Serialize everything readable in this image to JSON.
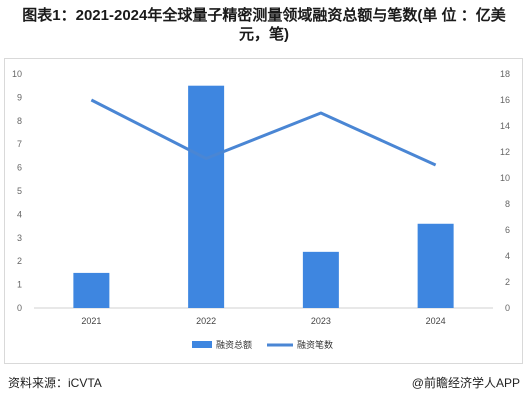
{
  "title": "图表1：2021-2024年全球量子精密测量领域融资总额与笔数(单 位 ：亿美元，笔)",
  "source_label": "资料来源：iCVTA",
  "brand_label": "@前瞻经济学人APP",
  "chart_data": {
    "type": "bar",
    "categories": [
      "2021",
      "2022",
      "2023",
      "2024"
    ],
    "series": [
      {
        "name": "融资总额",
        "type": "bar",
        "axis": "left",
        "values": [
          1.5,
          9.5,
          2.4,
          3.6
        ]
      },
      {
        "name": "融资笔数",
        "type": "line",
        "axis": "right",
        "values": [
          16,
          11.5,
          15,
          11
        ]
      }
    ],
    "ylim_left": [
      0,
      10
    ],
    "ylim_right": [
      0,
      18
    ],
    "left_ticks": [
      0,
      1,
      2,
      3,
      4,
      5,
      6,
      7,
      8,
      9,
      10
    ],
    "right_ticks": [
      0,
      2,
      4,
      6,
      8,
      10,
      12,
      14,
      16,
      18
    ],
    "legend_position": "bottom",
    "colors": {
      "bar": "#3e86e0",
      "line": "#4a86d4",
      "axis_text": "#666666",
      "grid": "#ececec"
    }
  }
}
